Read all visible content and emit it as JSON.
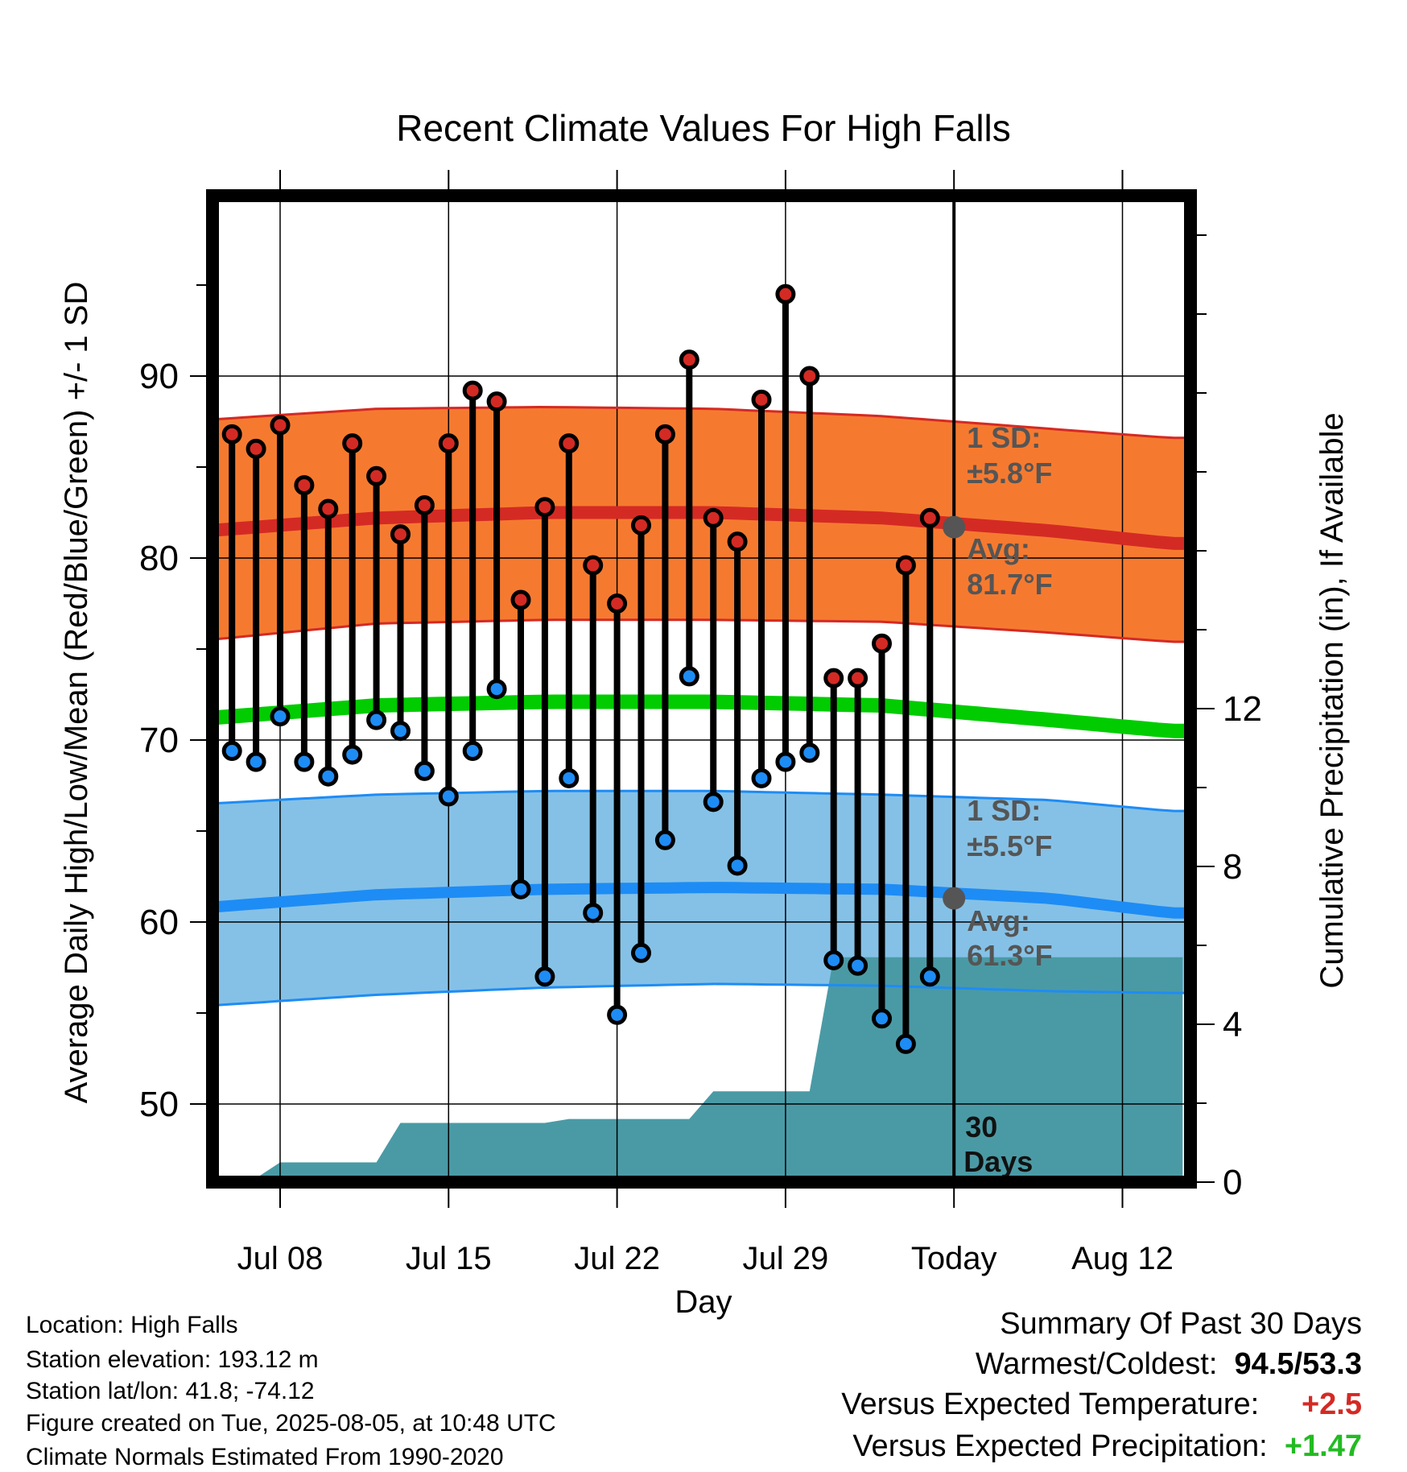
{
  "chart_data": {
    "type": "line",
    "title": "Recent Climate Values For High Falls",
    "xlabel": "Day",
    "ylabel": "Average Daily High/Low/Mean (Red/Blue/Green) +/- 1 SD",
    "y2label": "Cumulative Precipitation (in), If Available",
    "ylim": [
      45.5,
      99
    ],
    "y2lim": [
      0,
      24.4
    ],
    "yticks": [
      50,
      60,
      70,
      80,
      90
    ],
    "y2ticks": [
      0,
      4,
      8,
      12
    ],
    "x_tick_labels": [
      {
        "day": 3,
        "label": "Jul 08"
      },
      {
        "day": 10,
        "label": "Jul 15"
      },
      {
        "day": 17,
        "label": "Jul 22"
      },
      {
        "day": 24,
        "label": "Jul 29"
      },
      {
        "day": 31,
        "label": "Today"
      },
      {
        "day": 38,
        "label": "Aug 12"
      }
    ],
    "xlim": [
      -0.3,
      40.5
    ],
    "today_day": 31,
    "grid": true,
    "days": [
      1,
      2,
      3,
      4,
      5,
      6,
      7,
      8,
      9,
      10,
      11,
      12,
      13,
      14,
      15,
      16,
      17,
      18,
      19,
      20,
      21,
      22,
      23,
      24,
      25,
      26,
      27,
      28,
      29,
      30
    ],
    "highs": [
      86.8,
      86.0,
      87.3,
      84.0,
      82.7,
      86.3,
      84.5,
      81.3,
      82.9,
      86.3,
      89.2,
      88.6,
      77.7,
      82.8,
      86.3,
      79.6,
      77.5,
      81.8,
      86.8,
      90.9,
      82.2,
      80.9,
      88.7,
      94.5,
      90.0,
      73.4,
      73.4,
      75.3,
      79.6,
      82.2
    ],
    "lows": [
      69.4,
      68.8,
      71.3,
      68.8,
      68.0,
      69.2,
      71.1,
      70.5,
      68.3,
      66.9,
      69.4,
      72.8,
      61.8,
      57.0,
      67.9,
      60.5,
      54.9,
      58.3,
      64.5,
      73.5,
      66.6,
      63.1,
      67.9,
      68.8,
      69.3,
      57.9,
      57.6,
      54.7,
      53.3,
      57.0
    ],
    "normals": {
      "days": [
        0,
        7,
        14,
        21,
        28,
        35,
        40
      ],
      "high_avg": [
        81.5,
        82.2,
        82.5,
        82.5,
        82.2,
        81.5,
        80.8
      ],
      "high_sd_upper": [
        87.6,
        88.2,
        88.3,
        88.2,
        87.8,
        87.1,
        86.6
      ],
      "high_sd_lower": [
        75.5,
        76.4,
        76.6,
        76.6,
        76.5,
        75.9,
        75.4
      ],
      "mean_avg": [
        71.2,
        71.9,
        72.1,
        72.1,
        71.9,
        71.1,
        70.5
      ],
      "low_avg": [
        60.8,
        61.5,
        61.8,
        61.9,
        61.8,
        61.3,
        60.5
      ],
      "low_sd_upper": [
        66.5,
        67.0,
        67.2,
        67.2,
        67.0,
        66.7,
        66.1
      ],
      "low_sd_lower": [
        55.4,
        56.0,
        56.4,
        56.6,
        56.5,
        56.2,
        56.1
      ]
    },
    "precip_cumulative": {
      "x": [
        0,
        1,
        1,
        2,
        3,
        3.5,
        7,
        8,
        14,
        15,
        20,
        21,
        24,
        25,
        26,
        40.5
      ],
      "y": [
        0,
        0,
        0.1,
        0.1,
        0.5,
        0.5,
        0.5,
        1.5,
        1.5,
        1.6,
        1.6,
        2.3,
        2.3,
        2.3,
        5.7,
        5.7
      ]
    },
    "high_sd_label": "1 SD:",
    "high_sd_value": "±5.8°F",
    "high_avg_label": "Avg:",
    "high_avg_value": "81.7°F",
    "low_sd_label": "1 SD:",
    "low_sd_value": "±5.5°F",
    "low_avg_label": "Avg:",
    "low_avg_value": "61.3°F",
    "today_high_avg": 81.7,
    "today_low_avg": 61.3,
    "days_label_1": "30",
    "days_label_2": "Days"
  },
  "colors": {
    "high_band": "#f57a30",
    "high_edge": "#d42a24",
    "low_band": "#85c1e6",
    "low_edge": "#1e8cf5",
    "mean_line": "#00cc00",
    "precip": "#4a9aa5",
    "high_dot": "#d42a24",
    "low_dot": "#1e8cf5",
    "annotation": "#555555",
    "positive_temp": "#d42a24",
    "positive_precip": "#22bb22"
  },
  "info": {
    "location": "Location: High Falls",
    "elevation": "Station elevation: 193.12 m",
    "latlon": "Station lat/lon: 41.8; -74.12",
    "created": "Figure created on Tue, 2025-08-05, at 10:48 UTC",
    "normals": "Climate Normals Estimated From 1990-2020"
  },
  "summary": {
    "title": "Summary Of Past 30 Days",
    "warm_cold_label": "Warmest/Coldest:",
    "warm_cold_value": "94.5/53.3",
    "temp_label": "Versus Expected Temperature:",
    "temp_value": "+2.5",
    "precip_label": "Versus Expected Precipitation:",
    "precip_value": "+1.47"
  }
}
